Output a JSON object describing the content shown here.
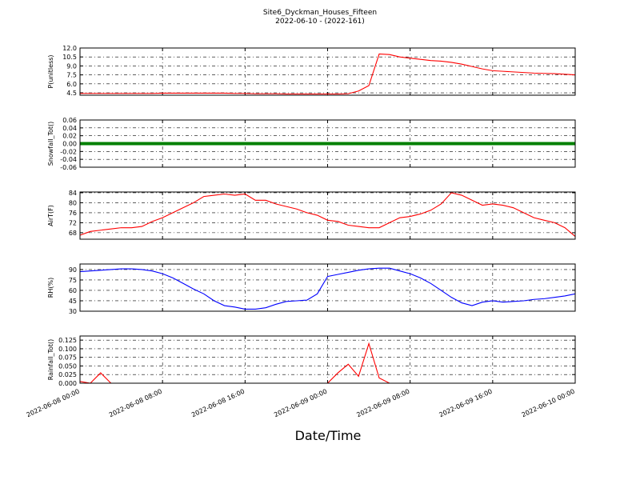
{
  "title": "Site6_Dyckman_Houses_Fifteen",
  "subtitle": "2022-06-10 - (2022-161)",
  "xlabel": "Date/Time",
  "xlim": [
    "2022-06-08 00:00",
    "2022-06-10 00:00"
  ],
  "xticks": [
    "2022-06-08 00:00",
    "2022-06-08 08:00",
    "2022-06-08 16:00",
    "2022-06-09 00:00",
    "2022-06-09 08:00",
    "2022-06-09 16:00",
    "2022-06-10 00:00"
  ],
  "x": [
    "2022-06-08 00:00",
    "2022-06-08 01:00",
    "2022-06-08 02:00",
    "2022-06-08 03:00",
    "2022-06-08 04:00",
    "2022-06-08 05:00",
    "2022-06-08 06:00",
    "2022-06-08 07:00",
    "2022-06-08 08:00",
    "2022-06-08 09:00",
    "2022-06-08 10:00",
    "2022-06-08 11:00",
    "2022-06-08 12:00",
    "2022-06-08 13:00",
    "2022-06-08 14:00",
    "2022-06-08 15:00",
    "2022-06-08 16:00",
    "2022-06-08 17:00",
    "2022-06-08 18:00",
    "2022-06-08 19:00",
    "2022-06-08 20:00",
    "2022-06-08 21:00",
    "2022-06-08 22:00",
    "2022-06-08 23:00",
    "2022-06-09 00:00",
    "2022-06-09 01:00",
    "2022-06-09 02:00",
    "2022-06-09 03:00",
    "2022-06-09 04:00",
    "2022-06-09 05:00",
    "2022-06-09 06:00",
    "2022-06-09 07:00",
    "2022-06-09 08:00",
    "2022-06-09 09:00",
    "2022-06-09 10:00",
    "2022-06-09 11:00",
    "2022-06-09 12:00",
    "2022-06-09 13:00",
    "2022-06-09 14:00",
    "2022-06-09 15:00",
    "2022-06-09 16:00",
    "2022-06-09 17:00",
    "2022-06-09 18:00",
    "2022-06-09 19:00",
    "2022-06-09 20:00",
    "2022-06-09 21:00",
    "2022-06-09 22:00",
    "2022-06-09 23:00",
    "2022-06-10 00:00"
  ],
  "chart_data": [
    {
      "type": "line",
      "ylabel": "P(unitless)",
      "ylim": [
        4.1,
        12
      ],
      "yticks": [
        4.5,
        {
          "value": 6,
          "label": "6.0"
        },
        7.5,
        {
          "value": 9,
          "label": "9.0"
        },
        10.5,
        {
          "value": 12,
          "label": "12.0"
        }
      ],
      "grid": true,
      "series": [
        {
          "color": "#ff0000",
          "values": [
            4.4,
            4.4,
            4.4,
            4.4,
            4.4,
            4.4,
            4.4,
            4.4,
            4.45,
            4.45,
            4.45,
            4.45,
            4.45,
            4.45,
            4.45,
            4.4,
            4.4,
            4.35,
            4.35,
            4.35,
            4.3,
            4.3,
            4.3,
            4.3,
            4.3,
            4.3,
            4.35,
            4.8,
            5.7,
            11.0,
            10.9,
            10.5,
            10.3,
            10.1,
            9.9,
            9.8,
            9.6,
            9.3,
            8.9,
            8.5,
            8.2,
            8.1,
            8.0,
            7.9,
            7.8,
            7.75,
            7.7,
            7.6,
            7.5
          ]
        }
      ]
    },
    {
      "type": "line",
      "ylabel": "Snowfall_Tot()",
      "ylim": [
        -0.06,
        0.06
      ],
      "yticks": [
        -0.06,
        -0.04,
        -0.02,
        {
          "value": 0,
          "label": "0.00"
        },
        0.02,
        0.04,
        0.06
      ],
      "grid": true,
      "series": [
        {
          "color": "#008000",
          "values": [
            0,
            0,
            0,
            0,
            0,
            0,
            0,
            0,
            0,
            0,
            0,
            0,
            0,
            0,
            0,
            0,
            0,
            0,
            0,
            0,
            0,
            0,
            0,
            0,
            0,
            0,
            0,
            0,
            0,
            0,
            0,
            0,
            0,
            0,
            0,
            0,
            0,
            0,
            0,
            0,
            0,
            0,
            0,
            0,
            0,
            0,
            0,
            0,
            0
          ]
        }
      ]
    },
    {
      "type": "line",
      "ylabel": "AirT(F)",
      "ylim": [
        65.4,
        84.3
      ],
      "yticks": [
        68,
        72,
        76,
        80,
        84
      ],
      "grid": true,
      "series": [
        {
          "color": "#ff0000",
          "values": [
            67,
            68.5,
            69,
            69.5,
            70,
            70,
            70.5,
            72.5,
            74,
            76,
            78,
            80,
            82.5,
            83,
            83.5,
            83,
            83.5,
            81,
            81,
            79.5,
            78.5,
            77.5,
            76,
            75,
            73,
            72.5,
            71,
            70.5,
            70,
            70,
            72,
            74,
            74.5,
            75.5,
            77,
            79.5,
            84,
            83,
            81,
            79,
            79.5,
            79,
            78,
            76,
            74,
            73,
            72,
            70,
            66.5
          ]
        }
      ]
    },
    {
      "type": "line",
      "ylabel": "RH(%)",
      "ylim": [
        30,
        98
      ],
      "yticks": [
        30,
        45,
        60,
        75,
        90
      ],
      "grid": true,
      "series": [
        {
          "color": "#0000ff",
          "values": [
            87,
            88,
            89,
            90,
            91,
            91,
            90,
            88,
            84,
            78,
            70,
            62,
            55,
            45,
            38,
            36,
            33,
            33,
            35,
            40,
            44,
            45,
            46,
            55,
            80,
            83,
            86,
            89,
            91,
            92,
            92,
            88,
            84,
            78,
            70,
            60,
            50,
            42,
            38,
            43,
            45,
            43,
            44,
            45,
            47,
            48,
            50,
            52,
            55
          ]
        }
      ]
    },
    {
      "type": "line",
      "ylabel": "Rainfall_Tot()",
      "ylim": [
        0,
        0.137
      ],
      "yticks": [
        {
          "value": 0,
          "label": "0.000"
        },
        {
          "value": 0.025,
          "label": "0.025"
        },
        {
          "value": 0.05,
          "label": "0.050"
        },
        {
          "value": 0.075,
          "label": "0.075"
        },
        {
          "value": 0.1,
          "label": "0.100"
        },
        0.125
      ],
      "grid": true,
      "series": [
        {
          "color": "#ff0000",
          "values": [
            0.005,
            0,
            0.03,
            0,
            0,
            0,
            0,
            0,
            0,
            0,
            0,
            0,
            0,
            0,
            0,
            0,
            0,
            0,
            0,
            0,
            0,
            0,
            0,
            0,
            0,
            0.03,
            0.055,
            0.02,
            0.115,
            0.015,
            0,
            0,
            0,
            0,
            0,
            0,
            0,
            0,
            0,
            0,
            0,
            0,
            0,
            0,
            0,
            0,
            0,
            0,
            0
          ]
        }
      ]
    }
  ]
}
